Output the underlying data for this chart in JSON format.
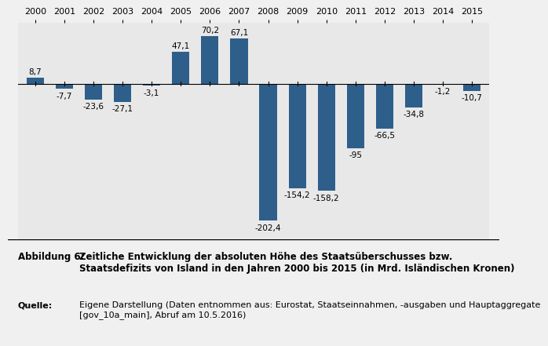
{
  "years": [
    2000,
    2001,
    2002,
    2003,
    2004,
    2005,
    2006,
    2007,
    2008,
    2009,
    2010,
    2011,
    2012,
    2013,
    2014,
    2015
  ],
  "values": [
    8.7,
    -7.7,
    -23.6,
    -27.1,
    -3.1,
    47.1,
    70.2,
    67.1,
    -202.4,
    -154.2,
    -158.2,
    -95.0,
    -66.5,
    -34.8,
    -1.2,
    -10.7
  ],
  "bar_color": "#2E5F8A",
  "background_color": "#E8E8E8",
  "caption_bold": "Abbildung 6:",
  "caption_text": "Zeitliche Entwicklung der absoluten Höhe des Staatsüberschusses bzw.\nStaatsdefizits von Island in den Jahren 2000 bis 2015 (in Mrd. Isländischen Kronen)",
  "source_bold": "Quelle:",
  "source_text": "Eigene Darstellung (Daten entnommen aus: Eurostat, Staatseinnahmen, -ausgaben und Hauptaggregate\n[gov_10a_main], Abruf am 10.5.2016)",
  "ylim": [
    -230,
    90
  ],
  "label_fontsize": 7.5,
  "tick_fontsize": 8
}
